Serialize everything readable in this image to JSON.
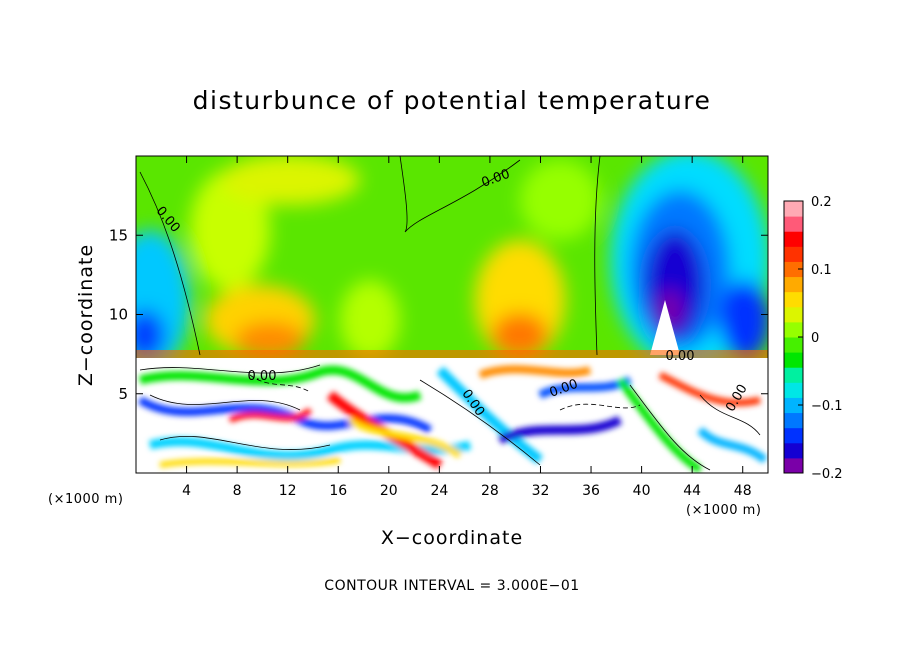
{
  "chart_data": {
    "type": "heatmap",
    "title": "disturbunce of potential temperature",
    "xlabel": "X−coordinate",
    "ylabel": "Z−coordinate",
    "x_unit": "(×1000 m)",
    "footer": "CONTOUR INTERVAL = 3.000E−01",
    "xlim": [
      0,
      50
    ],
    "ylim": [
      0,
      20
    ],
    "x_ticks": [
      4,
      8,
      12,
      16,
      20,
      24,
      28,
      32,
      36,
      40,
      44,
      48
    ],
    "x_tick_labels": [
      "4",
      "8",
      "12",
      "16",
      "20",
      "24",
      "28",
      "32",
      "36",
      "40",
      "44",
      "48"
    ],
    "y_ticks": [
      5,
      10,
      15
    ],
    "y_tick_labels": [
      "5",
      "10",
      "15"
    ],
    "colorbar": {
      "range": [
        -0.2,
        0.2
      ],
      "ticks": [
        -0.2,
        -0.1,
        0,
        0.1,
        0.2
      ],
      "tick_labels": [
        "−0.2",
        "−0.1",
        "0",
        "0.1",
        "0.2"
      ],
      "colors": [
        "#7a00a8",
        "#1400d2",
        "#0032ff",
        "#0078ff",
        "#00b4ff",
        "#00e6e6",
        "#00f0a0",
        "#00e600",
        "#46f000",
        "#96ff00",
        "#dcf500",
        "#ffdc00",
        "#ffaa00",
        "#ff6e00",
        "#ff3200",
        "#ff0000",
        "#ff5a78",
        "#ffaab4"
      ],
      "placement": "right"
    },
    "contour_labels": [
      "0.00",
      "0.00",
      "0.00",
      "0.00",
      "0.00",
      "0.00",
      "0.00"
    ],
    "description_of_field": {
      "boundary_z": 7.2
    }
  }
}
